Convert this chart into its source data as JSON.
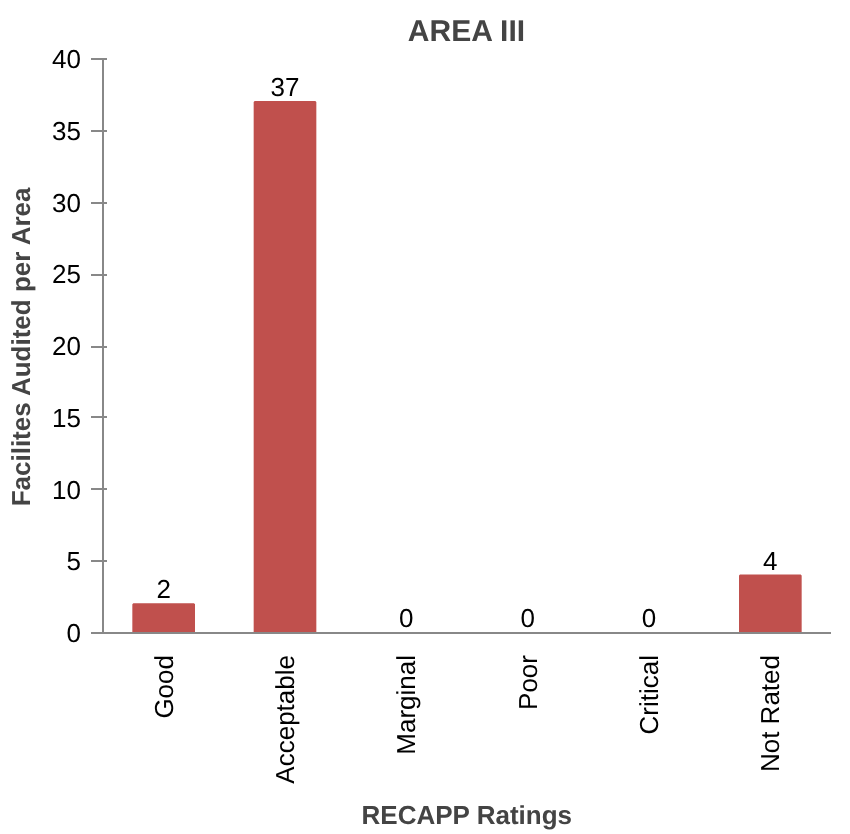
{
  "chart_data": {
    "type": "bar",
    "title": "AREA III",
    "xlabel": "RECAPP Ratings",
    "ylabel": "Facilites Audited per Area",
    "categories": [
      "Good",
      "Acceptable",
      "Marginal",
      "Poor",
      "Critical",
      "Not Rated"
    ],
    "values": [
      2,
      37,
      0,
      0,
      0,
      4
    ],
    "color": "#c0504d",
    "ylim": [
      0,
      40
    ],
    "yticks": [
      0,
      5,
      10,
      15,
      20,
      25,
      30,
      35,
      40
    ],
    "grid": false,
    "data_labels": true
  }
}
